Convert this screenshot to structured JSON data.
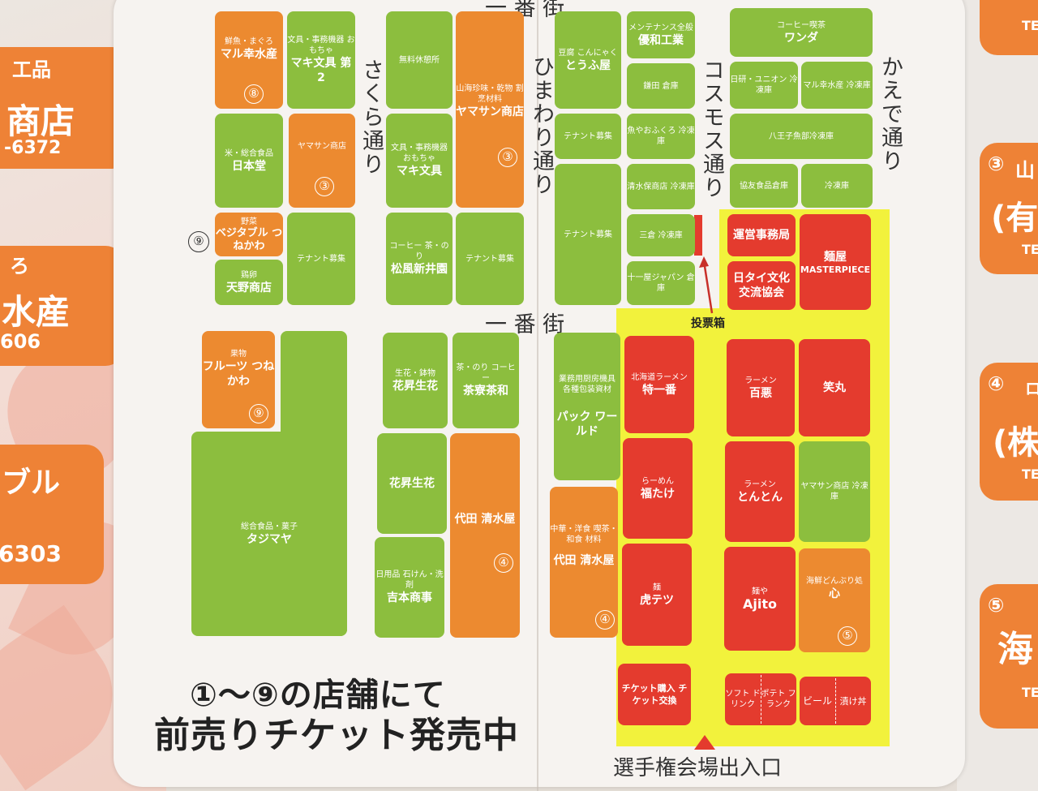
{
  "left_panel": [
    {
      "id": "l1",
      "line1": "工品",
      "line2": "商店",
      "line3": "-6372"
    },
    {
      "id": "l2",
      "line1": "ろ",
      "line2": "水産",
      "line3": "606"
    },
    {
      "id": "l3",
      "line1": "ブル",
      "line2": "",
      "line3": "6303"
    }
  ],
  "right_panel": [
    {
      "id": "r1",
      "n": "",
      "t1": "",
      "t2": "TE"
    },
    {
      "id": "r2",
      "n": "③",
      "t1": "山",
      "t2": "(有",
      "t3": "TE"
    },
    {
      "id": "r3",
      "n": "④",
      "t1": "ロ",
      "t2": "(株",
      "t3": "TE"
    },
    {
      "id": "r4",
      "n": "⑤",
      "t1": "",
      "t2": "海",
      "t3": "TE"
    }
  ],
  "streets": {
    "ichibangai_top": "一 番 街",
    "ichibangai_mid": "一 番 街",
    "sakura": "さくら通り",
    "himawari": "ひまわり通り",
    "cosmos": "コスモス通り",
    "kaede": "かえで通り"
  },
  "shops": [
    {
      "id": "maruko",
      "sub": "鮮魚・まぐろ",
      "name": "マル幸水産",
      "num": "⑧"
    },
    {
      "id": "maki2",
      "sub": "文具・事務機器 おもちゃ",
      "name": "マキ文具 第2"
    },
    {
      "id": "rest",
      "sub": "無料休憩所",
      "name": ""
    },
    {
      "id": "yamasan1",
      "sub": "山海珍味・乾物 割烹材料",
      "name": "ヤマサン商店",
      "num": "③"
    },
    {
      "id": "nihondo",
      "sub": "米・総合食品",
      "name": "日本堂"
    },
    {
      "id": "yamasan2",
      "sub": "ヤマサン商店",
      "name": "",
      "num": "③"
    },
    {
      "id": "maki",
      "sub": "文具・事務機器 おもちゃ",
      "name": "マキ文具"
    },
    {
      "id": "vege",
      "sub": "野菜",
      "name": "ベジタブル つねかわ"
    },
    {
      "id": "tenant1",
      "sub": "テナント募集",
      "name": ""
    },
    {
      "id": "amano",
      "sub": "鶏卵",
      "name": "天野商店"
    },
    {
      "id": "shofu",
      "sub": "コーヒー 茶・のり",
      "name": "松風新井園"
    },
    {
      "id": "tenant2",
      "sub": "テナント募集",
      "name": ""
    },
    {
      "id": "tofu",
      "sub": "豆腐 こんにゃく",
      "name": "とうふ屋"
    },
    {
      "id": "tenant3",
      "sub": "テナント募集",
      "name": ""
    },
    {
      "id": "tenant4",
      "sub": "テナント募集",
      "name": ""
    },
    {
      "id": "yuwa",
      "sub": "メンテナンス全般",
      "name": "優和工業"
    },
    {
      "id": "kamata",
      "sub": "鎌田 倉庫",
      "name": ""
    },
    {
      "id": "uoya",
      "sub": "魚やおふくろ 冷凍庫",
      "name": ""
    },
    {
      "id": "shimizu",
      "sub": "清水保商店 冷凍庫",
      "name": ""
    },
    {
      "id": "mikura",
      "sub": "三倉 冷凍庫",
      "name": ""
    },
    {
      "id": "tokaiya",
      "sub": "十一屋ジャパン 倉庫",
      "name": ""
    },
    {
      "id": "wanda",
      "sub": "コーヒー喫茶",
      "name": "ワンダ"
    },
    {
      "id": "nikken",
      "sub": "日研・ユニオン 冷凍庫",
      "name": ""
    },
    {
      "id": "marukosui",
      "sub": "マル幸水産 冷凍庫",
      "name": ""
    },
    {
      "id": "hachioji",
      "sub": "八王子魚部冷凍庫",
      "name": ""
    },
    {
      "id": "kyoyu",
      "sub": "協友食品倉庫",
      "name": ""
    },
    {
      "id": "reitoko",
      "sub": "冷凍庫",
      "name": ""
    },
    {
      "id": "unei",
      "sub": "",
      "name": "運営事務局"
    },
    {
      "id": "menya",
      "sub": "",
      "name": "麺屋",
      "name2": "MASTERPIECE"
    },
    {
      "id": "nittai",
      "sub": "",
      "name": "日タイ文化 交流協会"
    },
    {
      "id": "fruits",
      "sub": "果物",
      "name": "フルーツ つねかわ",
      "num": "⑨"
    },
    {
      "id": "tajimaya",
      "sub": "総合食品・菓子",
      "name": "タジマヤ"
    },
    {
      "id": "kasho1",
      "sub": "生花・鉢物",
      "name": "花昇生花"
    },
    {
      "id": "chaso",
      "sub": "茶・のり コーヒー",
      "name": "茶寮茶和"
    },
    {
      "id": "kasho2",
      "sub": "",
      "name": "花昇生花"
    },
    {
      "id": "yoshimoto",
      "sub": "日用品 石けん・洗剤",
      "name": "吉本商事"
    },
    {
      "id": "shimizuya1",
      "sub": "",
      "name": "代田 清水屋",
      "num": "④"
    },
    {
      "id": "pack",
      "sub": "業務用厨房機具 各種包装資材",
      "name": "パック ワールド"
    },
    {
      "id": "shimizuya2",
      "sub": "中華・洋食 喫茶・和食 材料",
      "name": "代田 清水屋",
      "num": "④"
    },
    {
      "id": "tokuichi",
      "sub": "北海道ラーメン",
      "name": "特一番"
    },
    {
      "id": "hyakurai",
      "sub": "ラーメン",
      "name": "百悪"
    },
    {
      "id": "shomaru",
      "sub": "",
      "name": "笑丸"
    },
    {
      "id": "fukutake",
      "sub": "らーめん",
      "name": "福たけ"
    },
    {
      "id": "tonton",
      "sub": "ラーメン",
      "name": "とんとん"
    },
    {
      "id": "yamasan3",
      "sub": "ヤマサン商店 冷凍庫",
      "name": ""
    },
    {
      "id": "toratetsu",
      "sub": "麺",
      "name": "虎テツ"
    },
    {
      "id": "ajito",
      "sub": "麺や",
      "name": "Ajito"
    },
    {
      "id": "kokoro",
      "sub": "海鮮どんぶり処",
      "name": "心",
      "num": "⑤"
    },
    {
      "id": "ticket",
      "sub": "",
      "name": "チケット購入 チケット交換"
    },
    {
      "id": "soft",
      "sub": "",
      "name": "ソフト ドリンク"
    },
    {
      "id": "potato",
      "sub": "",
      "name": "ポテト フランク"
    },
    {
      "id": "beer",
      "sub": "",
      "name": "ビール"
    },
    {
      "id": "tsukedon",
      "sub": "",
      "name": "漬け丼"
    }
  ],
  "labels": {
    "nine_circle": "⑨",
    "ballot": "投票箱",
    "entrance": "選手権会場出入口",
    "headline1": "①〜⑨の店舗にて",
    "headline2": "前売りチケット発売中"
  },
  "colors": {
    "green": "#8cbe3e",
    "orange": "#ec8a30",
    "red": "#e43b2e",
    "yellow": "#f2f23c",
    "side": "#ee8236"
  }
}
